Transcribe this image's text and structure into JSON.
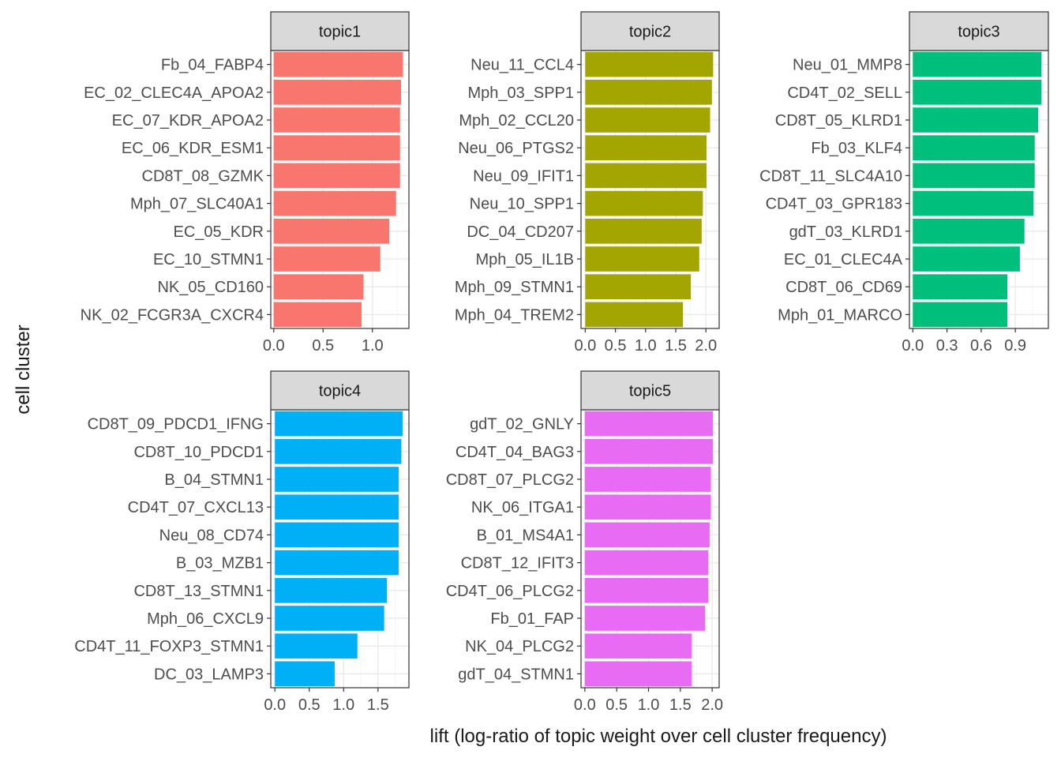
{
  "chart_data": [
    {
      "type": "bar",
      "orientation": "horizontal",
      "title": "topic1",
      "categories": [
        "Fb_04_FABP4",
        "EC_02_CLEC4A_APOA2",
        "EC_07_KDR_APOA2",
        "EC_06_KDR_ESM1",
        "CD8T_08_GZMK",
        "Mph_07_SLC40A1",
        "EC_05_KDR",
        "EC_10_STMN1",
        "NK_05_CD160",
        "NK_02_FCGR3A_CXCR4"
      ],
      "values": [
        1.31,
        1.29,
        1.28,
        1.28,
        1.28,
        1.24,
        1.17,
        1.08,
        0.91,
        0.89
      ],
      "xlim": [
        -0.03,
        1.37
      ],
      "xticks": [
        0.0,
        0.5,
        1.0
      ],
      "xtick_labels": [
        "0.0",
        "0.5",
        "1.0"
      ],
      "color": "#F8766D",
      "grid": true
    },
    {
      "type": "bar",
      "orientation": "horizontal",
      "title": "topic2",
      "categories": [
        "Neu_11_CCL4",
        "Mph_03_SPP1",
        "Mph_02_CCL20",
        "Neu_06_PTGS2",
        "Neu_09_IFIT1",
        "Neu_10_SPP1",
        "DC_04_CD207",
        "Mph_05_IL1B",
        "Mph_09_STMN1",
        "Mph_04_TREM2"
      ],
      "values": [
        2.12,
        2.1,
        2.07,
        2.01,
        2.01,
        1.95,
        1.93,
        1.89,
        1.75,
        1.62
      ],
      "xlim": [
        -0.07,
        2.22
      ],
      "xticks": [
        0.0,
        0.5,
        1.0,
        1.5,
        2.0
      ],
      "xtick_labels": [
        "0.0",
        "0.5",
        "1.0",
        "1.5",
        "2.0"
      ],
      "color": "#A3A500",
      "grid": true
    },
    {
      "type": "bar",
      "orientation": "horizontal",
      "title": "topic3",
      "categories": [
        "Neu_01_MMP8",
        "CD4T_02_SELL",
        "CD8T_05_KLRD1",
        "Fb_03_KLF4",
        "CD8T_11_SLC4A10",
        "CD4T_03_GPR183",
        "gdT_03_KLRD1",
        "EC_01_CLEC4A",
        "CD8T_06_CD69",
        "Mph_01_MARCO"
      ],
      "values": [
        1.13,
        1.13,
        1.1,
        1.07,
        1.07,
        1.06,
        0.98,
        0.94,
        0.83,
        0.83
      ],
      "xlim": [
        -0.03,
        1.19
      ],
      "xticks": [
        0.0,
        0.3,
        0.6,
        0.9
      ],
      "xtick_labels": [
        "0.0",
        "0.3",
        "0.6",
        "0.9"
      ],
      "color": "#00BF7D",
      "grid": true
    },
    {
      "type": "bar",
      "orientation": "horizontal",
      "title": "topic4",
      "categories": [
        "CD8T_09_PDCD1_IFNG",
        "CD8T_10_PDCD1",
        "B_04_STMN1",
        "CD4T_07_CXCL13",
        "Neu_08_CD74",
        "B_03_MZB1",
        "CD8T_13_STMN1",
        "Mph_06_CXCL9",
        "CD4T_11_FOXP3_STMN1",
        "DC_03_LAMP3"
      ],
      "values": [
        1.86,
        1.84,
        1.8,
        1.8,
        1.8,
        1.8,
        1.63,
        1.59,
        1.2,
        0.87
      ],
      "xlim": [
        -0.06,
        1.95
      ],
      "xticks": [
        0.0,
        0.5,
        1.0,
        1.5
      ],
      "xtick_labels": [
        "0.0",
        "0.5",
        "1.0",
        "1.5"
      ],
      "color": "#00B0F6",
      "grid": true
    },
    {
      "type": "bar",
      "orientation": "horizontal",
      "title": "topic5",
      "categories": [
        "gdT_02_GNLY",
        "CD4T_04_BAG3",
        "CD8T_07_PLCG2",
        "NK_06_ITGA1",
        "B_01_MS4A1",
        "CD8T_12_IFIT3",
        "CD4T_06_PLCG2",
        "Fb_01_FAP",
        "NK_04_PLCG2",
        "gdT_04_STMN1"
      ],
      "values": [
        2.01,
        2.01,
        1.98,
        1.98,
        1.96,
        1.94,
        1.94,
        1.89,
        1.68,
        1.68
      ],
      "xlim": [
        -0.06,
        2.11
      ],
      "xticks": [
        0.0,
        0.5,
        1.0,
        1.5,
        2.0
      ],
      "xtick_labels": [
        "0.0",
        "0.5",
        "1.0",
        "1.5",
        "2.0"
      ],
      "color": "#E76BF3",
      "grid": true
    }
  ],
  "shared": {
    "xlabel": "lift (log-ratio of topic weight over cell cluster frequency)",
    "ylabel": "cell cluster"
  },
  "style": {
    "strip_fill": "#D9D9D9",
    "panel_border": "#333333",
    "grid_major": "#EBEBEB",
    "grid_minor": "#F5F5F5",
    "text_color": "#4D4D4D",
    "title_color": "#1A1A1A"
  }
}
